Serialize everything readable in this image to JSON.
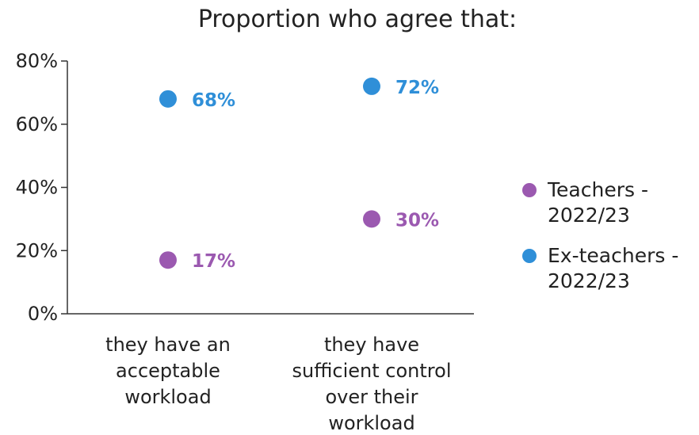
{
  "chart_data": {
    "type": "scatter",
    "title": "Proportion who agree that:",
    "categories": [
      [
        "they have an",
        "acceptable",
        "workload"
      ],
      [
        "they have",
        "sufficient control",
        "over their",
        "workload"
      ]
    ],
    "y_ticks": [
      "0%",
      "20%",
      "40%",
      "60%",
      "80%"
    ],
    "ylim": [
      0,
      80
    ],
    "grid": false,
    "legend_position": "right",
    "series": [
      {
        "name": [
          "Teachers -",
          "2022/23"
        ],
        "color": "#9b59b0",
        "values": [
          17,
          30
        ],
        "labels": [
          "17%",
          "30%"
        ]
      },
      {
        "name": [
          "Ex-teachers -",
          "2022/23"
        ],
        "color": "#2f8fd8",
        "values": [
          68,
          72
        ],
        "labels": [
          "68%",
          "72%"
        ]
      }
    ]
  }
}
